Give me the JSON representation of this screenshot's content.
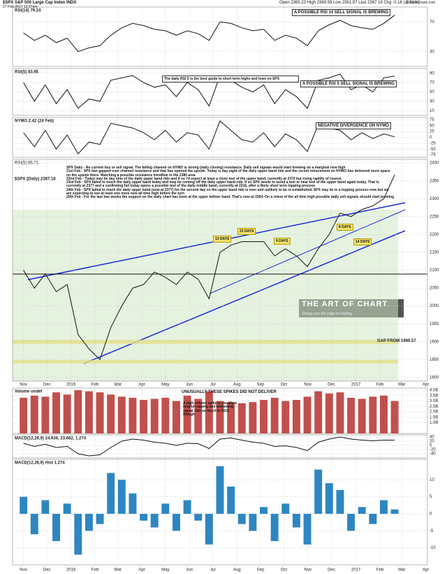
{
  "header": {
    "symbol": "$SPX S&P 500 Large Cap Index INDX",
    "date": "27-Feb-2017 12:37am",
    "quote": "Open 2365.23 High 2369.59 Low 2361.97 Last 2367.16 Chg -0.16 (-0.01%)",
    "source": "@StockCharts.com"
  },
  "chart_data": [
    {
      "type": "line",
      "title": "RSI(14) 79.24",
      "color": "#111111",
      "x": [
        0,
        2,
        4,
        6,
        8,
        10,
        12,
        14,
        16,
        18,
        20,
        22,
        24,
        26,
        28,
        30,
        32,
        34,
        36,
        38,
        40,
        42,
        44,
        46,
        48,
        50,
        52,
        54,
        56,
        58,
        60,
        62,
        64,
        66,
        68
      ],
      "values": [
        55,
        45,
        52,
        42,
        48,
        30,
        35,
        38,
        52,
        62,
        68,
        65,
        60,
        58,
        52,
        58,
        54,
        45,
        70,
        68,
        62,
        58,
        60,
        45,
        52,
        48,
        38,
        58,
        66,
        72,
        65,
        62,
        60,
        68,
        79
      ],
      "ylim": [
        10,
        90
      ],
      "yticks": [
        30,
        70
      ],
      "annotations": [
        "A POSSIBLE RSI 14 SELL SIGNAL IS BREWING"
      ]
    },
    {
      "type": "line",
      "title": "RSI(5) 83.95",
      "color": "#111111",
      "x": [
        0,
        2,
        4,
        6,
        8,
        10,
        12,
        14,
        16,
        18,
        20,
        22,
        24,
        26,
        28,
        30,
        32,
        34,
        36,
        38,
        40,
        42,
        44,
        46,
        48,
        50,
        52,
        54,
        56,
        58,
        60,
        62,
        64,
        66,
        68
      ],
      "values": [
        70,
        30,
        65,
        25,
        55,
        15,
        35,
        30,
        75,
        80,
        85,
        70,
        60,
        65,
        40,
        70,
        55,
        20,
        85,
        75,
        60,
        50,
        65,
        25,
        55,
        40,
        15,
        75,
        80,
        88,
        55,
        65,
        50,
        80,
        84
      ],
      "ylim": [
        0,
        100
      ],
      "yticks": [
        10,
        30,
        50,
        70,
        90
      ],
      "annotations": [
        "The daily RSI 5 is the best guide to short term highs and lows on SPX",
        "A POSSIBLE RSI 5 SELL SIGNAL IS BREWING"
      ]
    },
    {
      "type": "line",
      "title": "NYMO 2.42 (24 Feb)",
      "color": "#111111",
      "x": [
        0,
        2,
        4,
        6,
        8,
        10,
        12,
        14,
        16,
        18,
        20,
        22,
        24,
        26,
        28,
        30,
        32,
        34,
        36,
        38,
        40,
        42,
        44,
        46,
        48,
        50,
        52,
        54,
        56,
        58,
        60,
        62,
        64,
        66,
        68
      ],
      "values": [
        20,
        -40,
        30,
        -50,
        10,
        -70,
        -20,
        -30,
        60,
        50,
        40,
        20,
        -10,
        30,
        -20,
        20,
        10,
        -50,
        70,
        30,
        -10,
        -20,
        20,
        -40,
        15,
        -10,
        -60,
        55,
        40,
        30,
        -10,
        20,
        -5,
        15,
        2.42
      ],
      "ylim": [
        -85,
        85
      ],
      "yticks": [
        -75,
        -50,
        -25,
        0,
        25,
        50,
        75
      ],
      "annotations": [
        "NEGATIVE DIVERGENCE ON NYMO"
      ]
    },
    {
      "type": "line",
      "title": "$SPX (Daily) 2367.16",
      "subtitle": "RSI(5) 85.71",
      "color": "#111111",
      "x": [
        0,
        2,
        4,
        6,
        8,
        10,
        12,
        14,
        16,
        18,
        20,
        22,
        24,
        26,
        28,
        30,
        32,
        34,
        36,
        38,
        40,
        42,
        44,
        46,
        48,
        50,
        52,
        54,
        56,
        58,
        60,
        62,
        64,
        66,
        68
      ],
      "values": [
        2100,
        2050,
        2090,
        2040,
        2060,
        1920,
        1880,
        1850,
        1940,
        2000,
        2050,
        2060,
        2095,
        2080,
        2060,
        2095,
        2075,
        2020,
        2150,
        2170,
        2180,
        2180,
        2180,
        2140,
        2160,
        2140,
        2110,
        2160,
        2200,
        2260,
        2250,
        2270,
        2280,
        2300,
        2367
      ],
      "ylim": [
        1790,
        2410
      ],
      "yticks": [
        1800,
        1850,
        1900,
        1950,
        2000,
        2050,
        2100,
        2150,
        2200,
        2250,
        2300,
        2350,
        2400
      ],
      "annotations": [
        "13 DAYS",
        "23 DAYS",
        "9 DAYS",
        "8 DAYS",
        "14 DAYS",
        "GAP FROM 1989.57",
        "THE ART OF CHART",
        "Giving you the edge in trading"
      ],
      "comments": [
        "SPX Daily - No current buy or sell signal. The falling channel on NYMO is strong (daily closing) resistance. Daily sell signals would start brewing on a marginal new high",
        "21st Feb - SPX has gapped over channel resistance and that has opened the upside. Today is day eight of the daily upper band ride and the recent retracement on NYMO has delivered more space on the upside there. Watching a possible resistance trendline in the 2380 area",
        "22nd Feb - Today may be day nine of the daily upper band ride and if so I'd expect at least a close test of the upper band, currently at 2370 but rising rapidly of course.",
        "23rd Feb - SPX failed to touch the daily upper band today and may be coming off the daily upper band ride. If so SPX needs to avoid a test or near test of the upper band again today. That is currently at 2377 and a confirming fail today opens a possible test of the daily middle band, currently at 2316, after a likely short term topping process",
        "24th Feb - SPX failed to reach the daily upper band (now at 2377) for the second day so the upper band ride is over and unlikely to be re-established. SPX may be in a topping process now but we are expecting to see at least one more new all time high before the turn",
        "25th Feb - For the last two weeks the support on the daily chart has been at the upper keltner band. That's now at 2354. On a retest of the all time high possible daily sell signals should start brewing"
      ]
    },
    {
      "type": "bar",
      "title": "Volume undef",
      "color": "#c0504d",
      "x": [
        0,
        2,
        4,
        6,
        8,
        10,
        12,
        14,
        16,
        18,
        20,
        22,
        24,
        26,
        28,
        30,
        32,
        34,
        36,
        38,
        40,
        42,
        44,
        46,
        48,
        50,
        52,
        54,
        56,
        58,
        60,
        62,
        64,
        66,
        68
      ],
      "values": [
        3.3,
        3.5,
        3.4,
        3.8,
        3.6,
        4.0,
        3.9,
        3.8,
        3.6,
        3.4,
        3.3,
        3.1,
        3.2,
        3.3,
        3.0,
        3.5,
        3.2,
        3.9,
        3.0,
        2.9,
        2.8,
        2.9,
        3.1,
        3.3,
        3.0,
        3.1,
        3.4,
        3.9,
        3.7,
        3.8,
        3.3,
        3.2,
        3.4,
        3.5,
        3.0
      ],
      "ylim": [
        0,
        4.2
      ],
      "yticks": [
        {
          "value": 1,
          "label": "1.0B"
        },
        {
          "value": 1.5,
          "label": "1.5B"
        },
        {
          "value": 2,
          "label": "2.0B"
        },
        {
          "value": 2.5,
          "label": "2.5B"
        },
        {
          "value": 3,
          "label": "3.0B"
        },
        {
          "value": 3.5,
          "label": "3.5B"
        },
        {
          "value": 4,
          "label": "4.0B"
        }
      ],
      "annotations": [
        "UNUSUALLY THESE SPIKES DID NOT DELIVER",
        "A high volume spike is usually a helpful topping and bottoming signal. Not so much in 2016 though"
      ]
    },
    {
      "type": "line",
      "title": "MACD(12,26,9) 24.936, 23.662, 1.274",
      "color": "#111111",
      "x": [
        0,
        2,
        4,
        6,
        8,
        10,
        12,
        14,
        16,
        18,
        20,
        22,
        24,
        26,
        28,
        30,
        32,
        34,
        36,
        38,
        40,
        42,
        44,
        46,
        48,
        50,
        52,
        54,
        56,
        58,
        60,
        62,
        64,
        66,
        68
      ],
      "values": [
        10,
        -5,
        5,
        -10,
        -5,
        -40,
        -50,
        -45,
        -10,
        20,
        30,
        25,
        15,
        10,
        0,
        10,
        8,
        -15,
        30,
        35,
        25,
        15,
        10,
        -5,
        -2,
        -10,
        -25,
        15,
        30,
        40,
        30,
        25,
        22,
        25,
        25
      ],
      "ylim": [
        -60,
        50
      ],
      "yticks": [
        -40,
        -20,
        0,
        20,
        40
      ],
      "annotations": []
    },
    {
      "type": "bar",
      "title": "MACD(12,26,9) Hist 1.274",
      "color": "#2e86c1",
      "x": [
        0,
        2,
        4,
        6,
        8,
        10,
        12,
        14,
        16,
        18,
        20,
        22,
        24,
        26,
        28,
        30,
        32,
        34,
        36,
        38,
        40,
        42,
        44,
        46,
        48,
        50,
        52,
        54,
        56,
        58,
        60,
        62,
        64,
        66,
        68
      ],
      "values": [
        5,
        -6,
        4,
        -8,
        3,
        -12,
        -5,
        -3,
        12,
        10,
        6,
        -2,
        -4,
        3,
        -5,
        4,
        -2,
        -9,
        14,
        8,
        -3,
        -5,
        2,
        -8,
        3,
        -4,
        -9,
        13,
        9,
        7,
        -5,
        2,
        -3,
        4,
        1.3
      ],
      "ylim": [
        -15,
        16
      ],
      "yticks": [
        -10,
        -5,
        0,
        5,
        10
      ],
      "annotations": [],
      "xlim": [
        -2,
        74
      ],
      "xticks": [
        {
          "value": 0,
          "label": "Nov"
        },
        {
          "value": 4.3,
          "label": "Dec"
        },
        {
          "value": 8.7,
          "label": "2016"
        },
        {
          "value": 13.1,
          "label": "Feb"
        },
        {
          "value": 17.3,
          "label": "Mar"
        },
        {
          "value": 21.7,
          "label": "Apr"
        },
        {
          "value": 26,
          "label": "May"
        },
        {
          "value": 30.4,
          "label": "Jun"
        },
        {
          "value": 34.7,
          "label": "Jul"
        },
        {
          "value": 39.1,
          "label": "Aug"
        },
        {
          "value": 43.4,
          "label": "Sep"
        },
        {
          "value": 47.7,
          "label": "Oct"
        },
        {
          "value": 52.1,
          "label": "Nov"
        },
        {
          "value": 56.4,
          "label": "Dec"
        },
        {
          "value": 60.9,
          "label": "2017"
        },
        {
          "value": 65.3,
          "label": "Feb"
        },
        {
          "value": 69.3,
          "label": "Mar"
        },
        {
          "value": 73.7,
          "label": "Apr"
        }
      ]
    }
  ]
}
